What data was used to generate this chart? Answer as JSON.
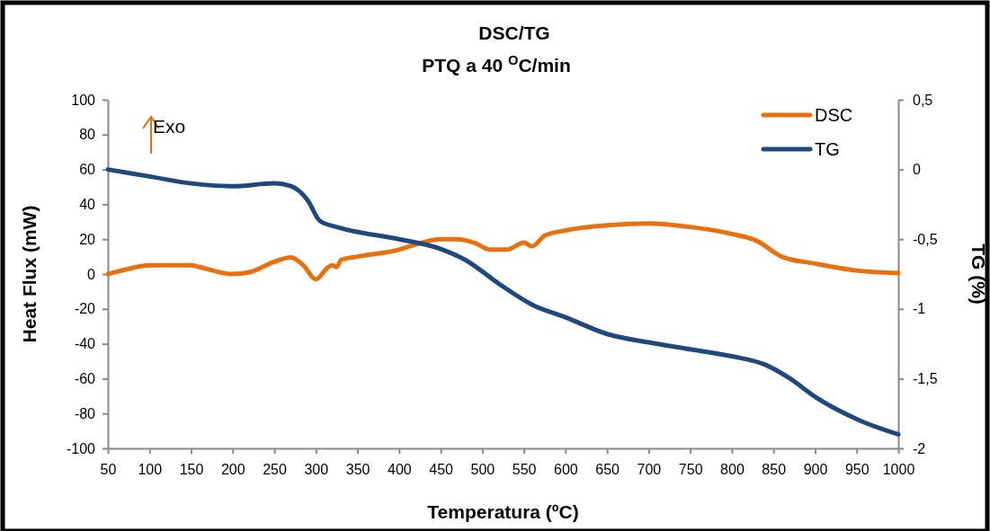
{
  "chart_data": {
    "type": "line",
    "title": "DSC/TG",
    "subtitle": "PTQ a 40 $^{O}$C/min",
    "xlabel": "Temperatura (ºC)",
    "ylabel": "Heat Flux (mW)",
    "y2label": "TG (%)",
    "annotations": [
      "Exo"
    ],
    "xlim": [
      50,
      1000
    ],
    "xticks": [
      50,
      100,
      150,
      200,
      250,
      300,
      350,
      400,
      450,
      500,
      550,
      600,
      650,
      700,
      750,
      800,
      850,
      900,
      950,
      1000
    ],
    "ylim": [
      -100,
      100
    ],
    "yticks": [
      -100,
      -80,
      -60,
      -40,
      -20,
      0,
      20,
      40,
      60,
      80,
      100
    ],
    "y2lim": [
      -2,
      0.5
    ],
    "y2ticks": [
      {
        "value": -2,
        "label": "-2"
      },
      {
        "value": -1.5,
        "label": "-1,5"
      },
      {
        "value": -1,
        "label": "-1"
      },
      {
        "value": -0.5,
        "label": "-0,5"
      },
      {
        "value": 0,
        "label": "0"
      },
      {
        "value": 0.5,
        "label": "0,5"
      }
    ],
    "grid": false,
    "legend": "top right",
    "marker": "none",
    "line_style": "solid",
    "series": [
      {
        "name": "DSC",
        "color": "#e8700f",
        "x": [
          50,
          75,
          100,
          150,
          160,
          200,
          220,
          250,
          270,
          285,
          300,
          315,
          320,
          325,
          330,
          350,
          400,
          420,
          450,
          470,
          490,
          510,
          530,
          550,
          560,
          575,
          600,
          650,
          700,
          750,
          800,
          830,
          860,
          900,
          950,
          1000
        ],
        "values": [
          0,
          3,
          5,
          5,
          4,
          0,
          1,
          7,
          9.5,
          5,
          -3,
          4,
          5,
          4,
          8,
          10,
          14,
          17,
          20,
          20,
          18,
          14,
          14,
          18,
          16,
          22,
          25,
          28,
          29,
          27,
          23,
          19,
          10,
          6,
          2,
          0.5
        ]
      },
      {
        "name": "TG",
        "color": "#1f497d",
        "axis": "y2",
        "x": [
          50,
          100,
          150,
          200,
          250,
          270,
          290,
          305,
          330,
          400,
          450,
          480,
          520,
          560,
          600,
          650,
          700,
          750,
          800,
          840,
          870,
          900,
          950,
          1000
        ],
        "values": [
          0,
          -0.05,
          -0.1,
          -0.12,
          -0.1,
          -0.12,
          -0.22,
          -0.37,
          -0.42,
          -0.5,
          -0.57,
          -0.65,
          -0.82,
          -0.97,
          -1.06,
          -1.18,
          -1.24,
          -1.29,
          -1.34,
          -1.4,
          -1.5,
          -1.63,
          -1.79,
          -1.9
        ]
      }
    ]
  }
}
